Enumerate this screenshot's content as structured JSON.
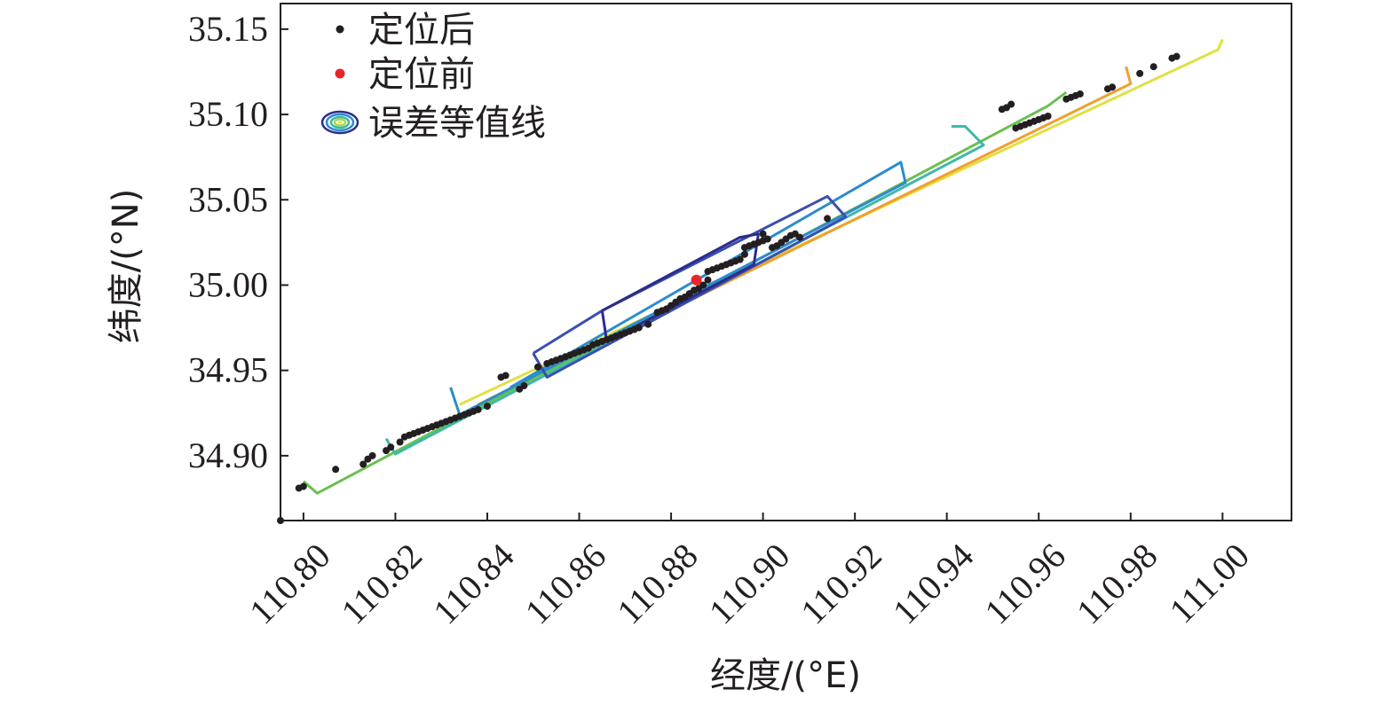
{
  "chart_data": {
    "type": "scatter",
    "xlabel": "经度/(°E)",
    "ylabel": "纬度/(°N)",
    "xlim": [
      110.795,
      111.015
    ],
    "ylim": [
      34.862,
      35.165
    ],
    "xticks": [
      "110.80",
      "110.82",
      "110.84",
      "110.86",
      "110.88",
      "110.90",
      "110.92",
      "110.94",
      "110.96",
      "110.98",
      "111.00"
    ],
    "yticks": [
      "34.90",
      "34.95",
      "35.00",
      "35.05",
      "35.10",
      "35.15"
    ],
    "legend": {
      "position": "top-left",
      "entries": [
        {
          "label": "定位后",
          "color": "#231f20"
        },
        {
          "label": "定位前",
          "color": "#e8262a"
        },
        {
          "label": "误差等值线",
          "color": "#3a4fb0"
        }
      ]
    },
    "series": [
      {
        "name": "定位后",
        "color": "#231f20",
        "points": [
          [
            110.795,
            34.862
          ],
          [
            110.799,
            34.881
          ],
          [
            110.8,
            34.882
          ],
          [
            110.807,
            34.892
          ],
          [
            110.813,
            34.895
          ],
          [
            110.814,
            34.898
          ],
          [
            110.815,
            34.9
          ],
          [
            110.818,
            34.903
          ],
          [
            110.819,
            34.905
          ],
          [
            110.821,
            34.908
          ],
          [
            110.822,
            34.911
          ],
          [
            110.823,
            34.912
          ],
          [
            110.824,
            34.913
          ],
          [
            110.825,
            34.914
          ],
          [
            110.826,
            34.915
          ],
          [
            110.827,
            34.916
          ],
          [
            110.828,
            34.917
          ],
          [
            110.829,
            34.918
          ],
          [
            110.83,
            34.919
          ],
          [
            110.831,
            34.92
          ],
          [
            110.832,
            34.921
          ],
          [
            110.833,
            34.922
          ],
          [
            110.834,
            34.923
          ],
          [
            110.835,
            34.924
          ],
          [
            110.836,
            34.925
          ],
          [
            110.837,
            34.926
          ],
          [
            110.838,
            34.927
          ],
          [
            110.84,
            34.929
          ],
          [
            110.843,
            34.946
          ],
          [
            110.844,
            34.947
          ],
          [
            110.847,
            34.939
          ],
          [
            110.848,
            34.941
          ],
          [
            110.851,
            34.952
          ],
          [
            110.853,
            34.954
          ],
          [
            110.854,
            34.955
          ],
          [
            110.855,
            34.956
          ],
          [
            110.856,
            34.957
          ],
          [
            110.857,
            34.958
          ],
          [
            110.858,
            34.959
          ],
          [
            110.859,
            34.96
          ],
          [
            110.86,
            34.961
          ],
          [
            110.861,
            34.962
          ],
          [
            110.862,
            34.963
          ],
          [
            110.863,
            34.965
          ],
          [
            110.864,
            34.966
          ],
          [
            110.865,
            34.967
          ],
          [
            110.866,
            34.968
          ],
          [
            110.867,
            34.969
          ],
          [
            110.868,
            34.97
          ],
          [
            110.869,
            34.971
          ],
          [
            110.87,
            34.972
          ],
          [
            110.871,
            34.973
          ],
          [
            110.872,
            34.974
          ],
          [
            110.873,
            34.975
          ],
          [
            110.875,
            34.977
          ],
          [
            110.877,
            34.984
          ],
          [
            110.878,
            34.985
          ],
          [
            110.879,
            34.986
          ],
          [
            110.88,
            34.988
          ],
          [
            110.881,
            34.99
          ],
          [
            110.882,
            34.992
          ],
          [
            110.883,
            34.993
          ],
          [
            110.884,
            34.995
          ],
          [
            110.885,
            34.997
          ],
          [
            110.886,
            34.998
          ],
          [
            110.887,
            35.0
          ],
          [
            110.888,
            35.003
          ],
          [
            110.888,
            35.008
          ],
          [
            110.889,
            35.009
          ],
          [
            110.89,
            35.01
          ],
          [
            110.891,
            35.011
          ],
          [
            110.892,
            35.012
          ],
          [
            110.893,
            35.013
          ],
          [
            110.894,
            35.014
          ],
          [
            110.895,
            35.015
          ],
          [
            110.896,
            35.018
          ],
          [
            110.896,
            35.022
          ],
          [
            110.897,
            35.023
          ],
          [
            110.898,
            35.024
          ],
          [
            110.899,
            35.025
          ],
          [
            110.9,
            35.026
          ],
          [
            110.9,
            35.03
          ],
          [
            110.901,
            35.027
          ],
          [
            110.902,
            35.022
          ],
          [
            110.903,
            35.023
          ],
          [
            110.904,
            35.025
          ],
          [
            110.905,
            35.027
          ],
          [
            110.906,
            35.029
          ],
          [
            110.907,
            35.03
          ],
          [
            110.908,
            35.028
          ],
          [
            110.914,
            35.039
          ],
          [
            110.952,
            35.103
          ],
          [
            110.953,
            35.104
          ],
          [
            110.954,
            35.106
          ],
          [
            110.955,
            35.092
          ],
          [
            110.956,
            35.093
          ],
          [
            110.957,
            35.094
          ],
          [
            110.958,
            35.095
          ],
          [
            110.959,
            35.096
          ],
          [
            110.96,
            35.097
          ],
          [
            110.961,
            35.098
          ],
          [
            110.962,
            35.099
          ],
          [
            110.966,
            35.109
          ],
          [
            110.967,
            35.11
          ],
          [
            110.968,
            35.111
          ],
          [
            110.969,
            35.112
          ],
          [
            110.975,
            35.115
          ],
          [
            110.976,
            35.116
          ],
          [
            110.982,
            35.124
          ],
          [
            110.985,
            35.128
          ],
          [
            110.989,
            35.133
          ],
          [
            110.99,
            35.134
          ]
        ]
      },
      {
        "name": "定位前",
        "color": "#e8262a",
        "points": [
          [
            110.8855,
            35.003
          ]
        ]
      },
      {
        "name": "误差等值线",
        "contours": [
          {
            "color": "#e0e040",
            "points": [
              [
                110.834,
                34.93
              ],
              [
                110.999,
                35.138
              ],
              [
                111.0,
                35.144
              ]
            ]
          },
          {
            "color": "#f0a030",
            "points": [
              [
                110.838,
                34.93
              ],
              [
                110.98,
                35.118
              ],
              [
                110.979,
                35.128
              ]
            ]
          },
          {
            "color": "#6ac050",
            "points": [
              [
                110.8,
                34.885
              ],
              [
                110.803,
                34.878
              ],
              [
                110.962,
                35.105
              ],
              [
                110.966,
                35.113
              ]
            ]
          },
          {
            "color": "#3fb8a8",
            "points": [
              [
                110.818,
                34.91
              ],
              [
                110.82,
                34.901
              ],
              [
                110.948,
                35.082
              ],
              [
                110.944,
                35.093
              ],
              [
                110.941,
                35.093
              ]
            ]
          },
          {
            "color": "#2c8ccc",
            "points": [
              [
                110.832,
                34.94
              ],
              [
                110.834,
                34.924
              ],
              [
                110.931,
                35.06
              ],
              [
                110.93,
                35.072
              ],
              [
                110.845,
                34.94
              ]
            ]
          },
          {
            "color": "#3a4fb0",
            "points": [
              [
                110.85,
                34.96
              ],
              [
                110.853,
                34.946
              ],
              [
                110.918,
                35.04
              ],
              [
                110.914,
                35.052
              ],
              [
                110.865,
                34.985
              ],
              [
                110.85,
                34.96
              ]
            ]
          },
          {
            "color": "#2b2c8c",
            "points": [
              [
                110.865,
                34.985
              ],
              [
                110.866,
                34.967
              ],
              [
                110.898,
                35.012
              ],
              [
                110.899,
                35.03
              ],
              [
                110.895,
                35.028
              ],
              [
                110.865,
                34.985
              ]
            ]
          }
        ]
      }
    ]
  }
}
